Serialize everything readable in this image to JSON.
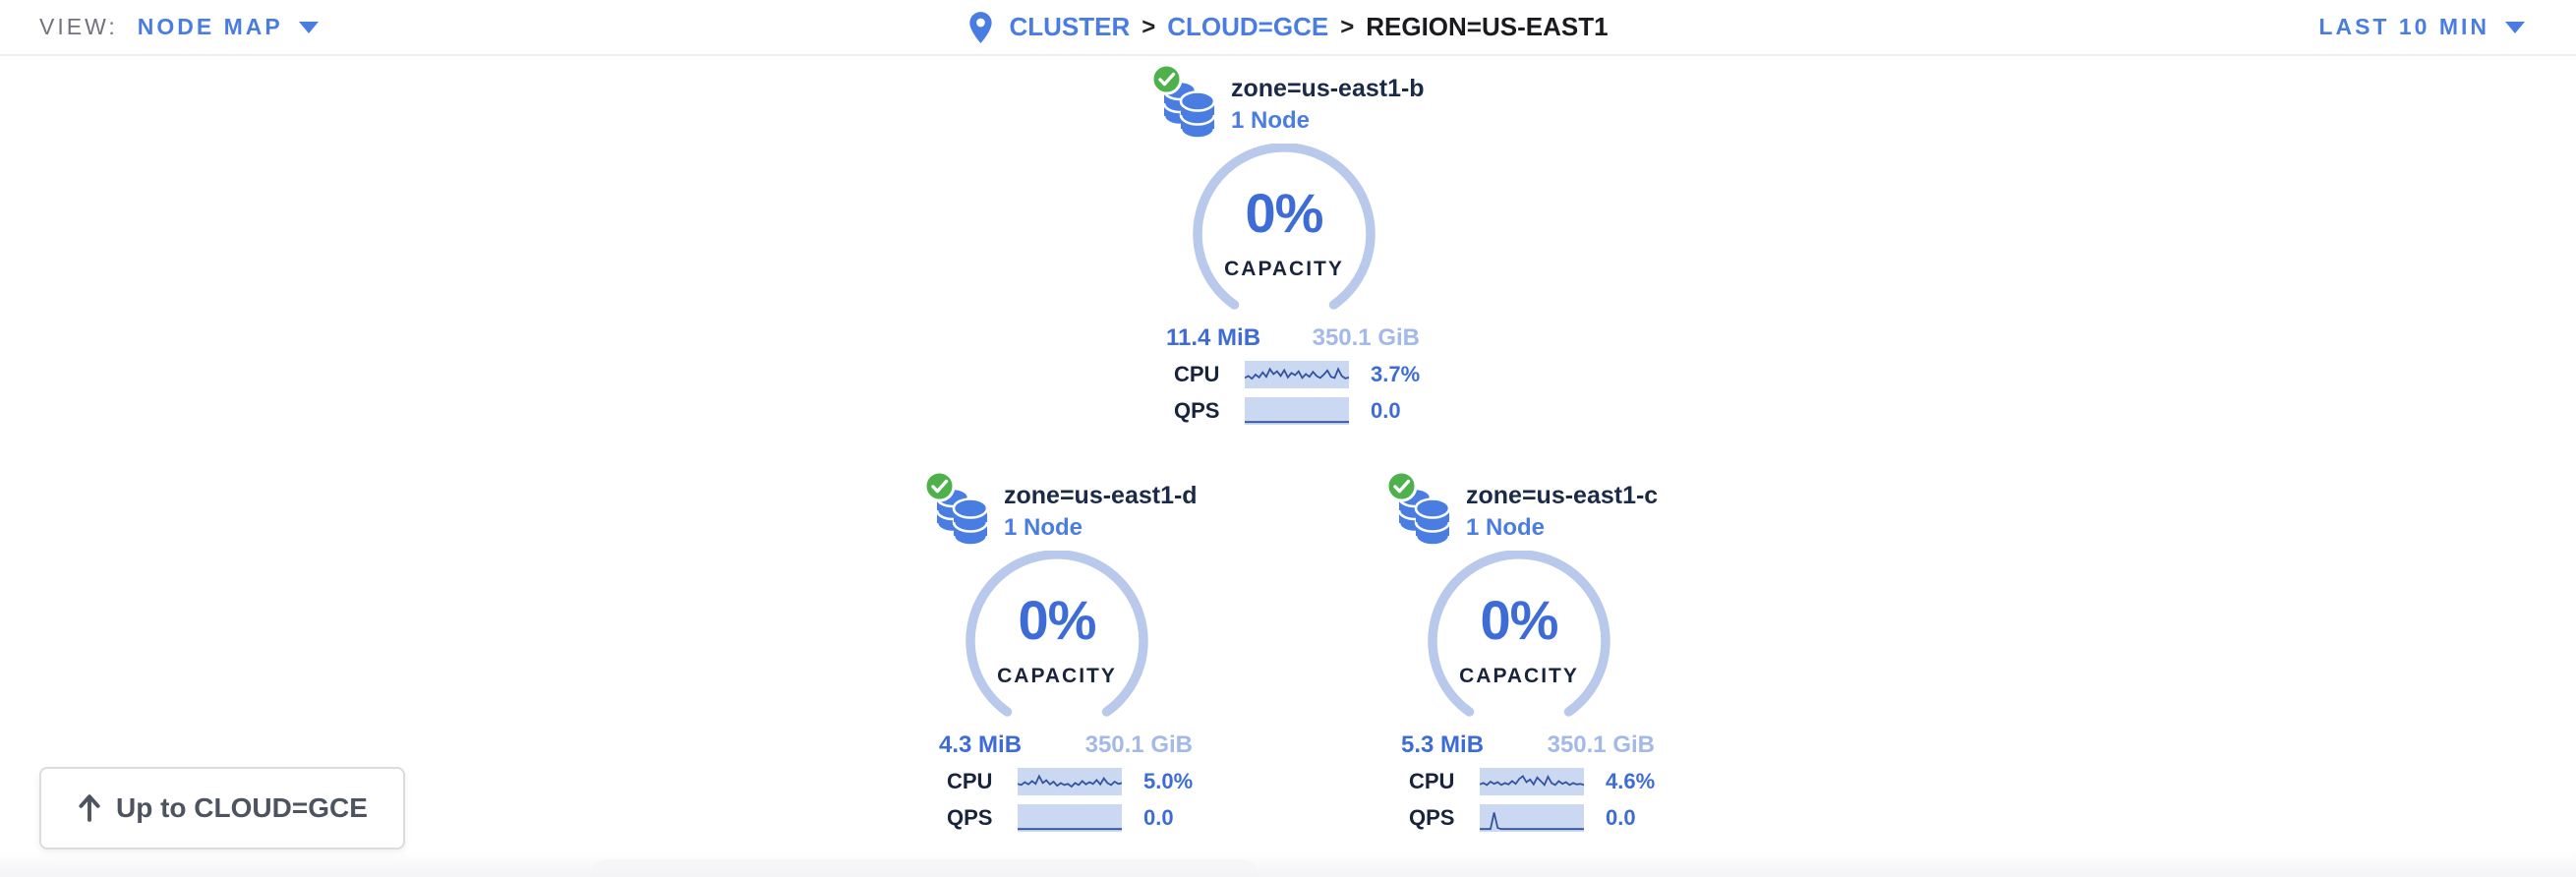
{
  "view_bar": {
    "view_label": "VIEW:",
    "view_value": "NODE MAP",
    "breadcrumb": {
      "separator": ">",
      "items": [
        {
          "label": "CLUSTER"
        },
        {
          "label": "CLOUD=GCE"
        },
        {
          "label": "REGION=US-EAST1"
        }
      ]
    },
    "time_range": "LAST 10 MIN"
  },
  "zones": [
    {
      "name": "zone=us-east1-b",
      "nodes": "1 Node",
      "capacity_pct": "0%",
      "capacity_label": "CAPACITY",
      "capacity_used": "11.4 MiB",
      "capacity_total": "350.1 GiB",
      "cpu_label": "CPU",
      "cpu_value": "3.7%",
      "qps_label": "QPS",
      "qps_value": "0.0",
      "cpu_spark": [
        62,
        55,
        65,
        50,
        60,
        42,
        58,
        30,
        48,
        38,
        55,
        34,
        60,
        44,
        52,
        38,
        62,
        48,
        58,
        40,
        55,
        62,
        50,
        35,
        58,
        62,
        30,
        55,
        64,
        60
      ],
      "qps_spark": [
        90,
        90,
        90,
        90,
        90,
        90,
        90,
        90,
        90,
        90,
        90,
        90,
        90,
        90,
        90,
        90,
        90,
        90,
        90,
        90,
        90,
        90,
        90,
        90,
        90,
        90,
        90,
        90,
        90,
        90
      ]
    },
    {
      "name": "zone=us-east1-d",
      "nodes": "1 Node",
      "capacity_pct": "0%",
      "capacity_label": "CAPACITY",
      "capacity_used": "4.3 MiB",
      "capacity_total": "350.1 GiB",
      "cpu_label": "CPU",
      "cpu_value": "5.0%",
      "qps_label": "QPS",
      "qps_value": "0.0",
      "cpu_spark": [
        58,
        62,
        52,
        60,
        48,
        58,
        30,
        55,
        45,
        60,
        50,
        65,
        55,
        62,
        58,
        68,
        55,
        62,
        48,
        60,
        52,
        58,
        44,
        60,
        38,
        55,
        62,
        50,
        58,
        55
      ],
      "qps_spark": [
        90,
        90,
        90,
        90,
        90,
        90,
        90,
        90,
        90,
        90,
        90,
        90,
        90,
        90,
        90,
        90,
        90,
        90,
        90,
        90,
        90,
        90,
        90,
        90,
        90,
        90,
        90,
        90,
        90,
        90
      ]
    },
    {
      "name": "zone=us-east1-c",
      "nodes": "1 Node",
      "capacity_pct": "0%",
      "capacity_label": "CAPACITY",
      "capacity_used": "5.3 MiB",
      "capacity_total": "350.1 GiB",
      "cpu_label": "CPU",
      "cpu_value": "4.6%",
      "qps_label": "QPS",
      "qps_value": "0.0",
      "cpu_spark": [
        60,
        55,
        62,
        50,
        58,
        52,
        62,
        55,
        60,
        48,
        58,
        40,
        30,
        52,
        42,
        60,
        35,
        48,
        62,
        32,
        55,
        62,
        48,
        58,
        52,
        62,
        55,
        60,
        58,
        62
      ],
      "qps_spark": [
        90,
        90,
        90,
        90,
        30,
        86,
        90,
        90,
        90,
        90,
        90,
        90,
        90,
        90,
        90,
        90,
        90,
        90,
        90,
        90,
        90,
        90,
        90,
        90,
        90,
        90,
        90,
        90,
        90,
        90
      ]
    }
  ],
  "up_button": {
    "label": "Up to CLOUD=GCE"
  },
  "colors": {
    "accent_blue": "#4a7de2",
    "gauge_arc": "#b9c9ec",
    "gauge_pct_text": "#3e6cd6",
    "capacity_total_text": "#a3b9e8",
    "spark_bg": "#cbd8f2",
    "spark_line": "#33539f",
    "status_green": "#4eb14b",
    "dark_text": "#1b2a47"
  },
  "icons": {
    "pin": "location-pin-icon",
    "node": "database-stack-icon",
    "status": "green-check-icon",
    "up": "arrow-up-icon"
  }
}
